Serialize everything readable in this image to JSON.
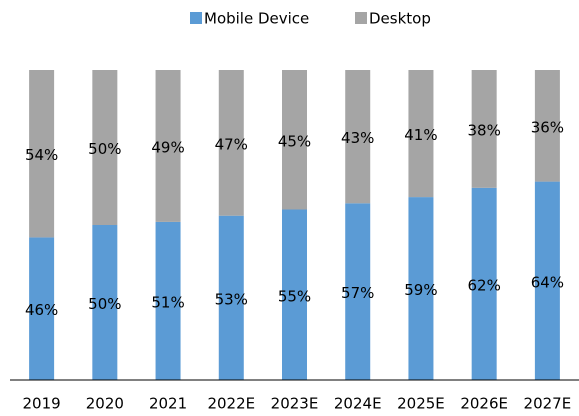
{
  "chart_data": {
    "type": "stacked_bar",
    "categories": [
      "2019",
      "2020",
      "2021",
      "2022E",
      "2023E",
      "2024E",
      "2025E",
      "2026E",
      "2027E"
    ],
    "series": [
      {
        "name": "Mobile Device",
        "color": "#5b9bd5",
        "values": [
          46,
          50,
          51,
          53,
          55,
          57,
          59,
          62,
          64
        ],
        "value_labels": [
          "46%",
          "50%",
          "51%",
          "53%",
          "55%",
          "57%",
          "59%",
          "62%",
          "64%"
        ]
      },
      {
        "name": "Desktop",
        "color": "#a5a5a5",
        "values": [
          54,
          50,
          49,
          47,
          45,
          43,
          41,
          38,
          36
        ],
        "value_labels": [
          "54%",
          "50%",
          "49%",
          "47%",
          "45%",
          "43%",
          "41%",
          "38%",
          "36%"
        ]
      }
    ],
    "ylim": [
      0,
      100
    ],
    "legend": "top"
  }
}
